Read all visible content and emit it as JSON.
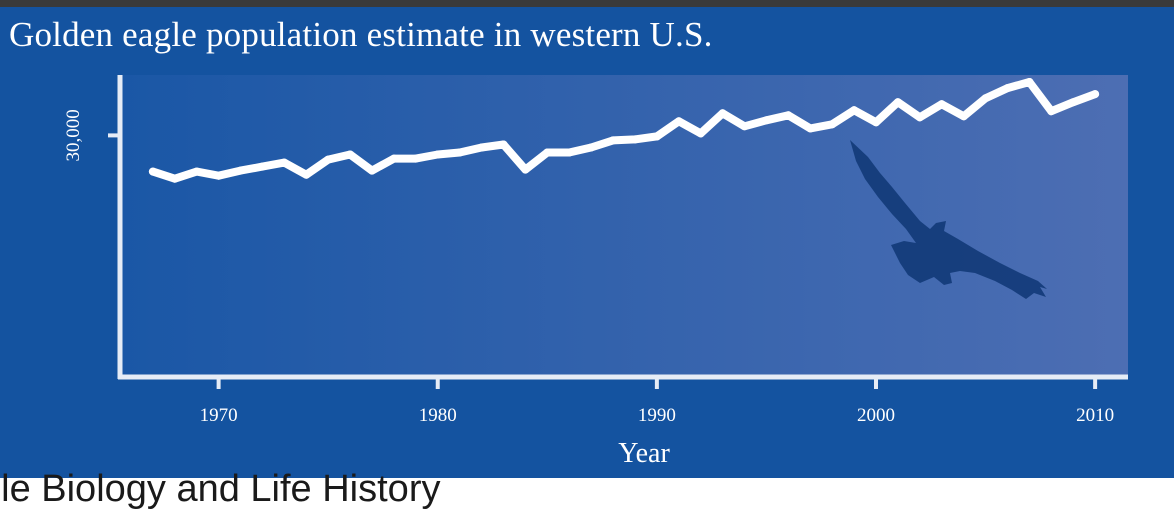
{
  "chart_data": {
    "type": "line",
    "title": "Golden eagle population estimate in western U.S.",
    "xlabel": "Year",
    "ylabel": "",
    "x_ticks": [
      1970,
      1980,
      1990,
      2000,
      2010
    ],
    "y_ticks": [
      30000
    ],
    "y_tick_labels": [
      "30,000"
    ],
    "xlim": [
      1965.5,
      2011.5
    ],
    "ylim": [
      18000,
      33000
    ],
    "grid": false,
    "series": [
      {
        "name": "",
        "color": "#ffffff",
        "x": [
          1967,
          1968,
          1969,
          1970,
          1971,
          1972,
          1973,
          1974,
          1975,
          1976,
          1977,
          1978,
          1979,
          1980,
          1981,
          1982,
          1983,
          1984,
          1985,
          1986,
          1987,
          1988,
          1989,
          1990,
          1991,
          1992,
          1993,
          1994,
          1995,
          1996,
          1997,
          1998,
          1999,
          2000,
          2001,
          2002,
          2003,
          2004,
          2005,
          2006,
          2007,
          2008,
          2009,
          2010
        ],
        "y": [
          28200,
          27850,
          28200,
          28000,
          28250,
          28450,
          28650,
          28050,
          28800,
          29050,
          28250,
          28850,
          28850,
          29050,
          29150,
          29400,
          29550,
          28300,
          29150,
          29150,
          29400,
          29750,
          29800,
          29950,
          30700,
          30100,
          31100,
          30450,
          30750,
          31000,
          30350,
          30550,
          31250,
          30650,
          31650,
          30900,
          31550,
          30950,
          31850,
          32350,
          32650,
          31200,
          31650,
          32050
        ]
      }
    ]
  },
  "decoration": {
    "silhouette_icon": "eagle-silhouette-icon",
    "silhouette_color": "#123a78"
  },
  "caption": "gle Biology and Life History"
}
